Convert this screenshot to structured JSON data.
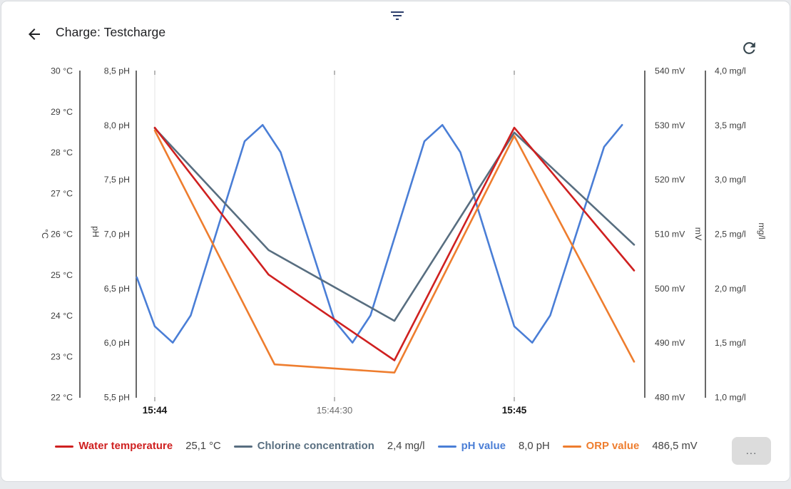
{
  "header": {
    "title": "Charge: Testcharge",
    "back_icon": "arrow-back",
    "filter_icon": "filter-list",
    "refresh_icon": "refresh"
  },
  "footer": {
    "more_label": "..."
  },
  "chart_data": {
    "type": "line",
    "legend_position": "bottom",
    "x_axis": {
      "unit": "time",
      "t_range_seconds": [
        -3.1,
        81.8
      ],
      "ticks": [
        {
          "t": 0,
          "label": "15:44",
          "bold": true
        },
        {
          "t": 30,
          "label": "15:44:30",
          "bold": false
        },
        {
          "t": 60,
          "label": "15:45",
          "bold": true
        }
      ]
    },
    "y_axes": [
      {
        "id": "temp",
        "unit": "°C",
        "range": [
          22,
          30
        ],
        "tick_labels": [
          "30 °C",
          "29 °C",
          "28 °C",
          "27 °C",
          "26 °C",
          "25 °C",
          "24 °C",
          "23 °C",
          "22 °C"
        ]
      },
      {
        "id": "ph",
        "unit": "pH",
        "range": [
          5.5,
          8.5
        ],
        "tick_labels": [
          "8,5 pH",
          "8,0 pH",
          "7,5 pH",
          "7,0 pH",
          "6,5 pH",
          "6,0 pH",
          "5,5 pH"
        ]
      },
      {
        "id": "mv",
        "unit": "mV",
        "range": [
          480,
          540
        ],
        "tick_labels": [
          "540 mV",
          "530 mV",
          "520 mV",
          "510 mV",
          "500 mV",
          "490 mV",
          "480 mV"
        ]
      },
      {
        "id": "mgl",
        "unit": "mg/l",
        "range": [
          1.0,
          4.0
        ],
        "tick_labels": [
          "4,0 mg/l",
          "3,5 mg/l",
          "3,0 mg/l",
          "2,5 mg/l",
          "2,0 mg/l",
          "1,5 mg/l",
          "1,0 mg/l"
        ]
      }
    ],
    "series": [
      {
        "name": "Water temperature",
        "axis": "temp",
        "color": "#cf2020",
        "current_value": "25,1 °C",
        "points": [
          [
            0,
            28.6
          ],
          [
            19,
            25.0
          ],
          [
            40,
            22.9
          ],
          [
            60,
            28.6
          ],
          [
            80,
            25.1
          ]
        ]
      },
      {
        "name": "Chlorine concentration",
        "axis": "mgl",
        "color": "#586e80",
        "current_value": "2,4 mg/l",
        "points": [
          [
            0,
            3.47
          ],
          [
            19,
            2.35
          ],
          [
            40,
            1.7
          ],
          [
            60,
            3.43
          ],
          [
            80,
            2.4
          ]
        ]
      },
      {
        "name": "pH value",
        "axis": "ph",
        "color": "#4a7ed6",
        "current_value": "8,0 pH",
        "points": [
          [
            -3,
            6.6
          ],
          [
            0,
            6.15
          ],
          [
            3,
            6.0
          ],
          [
            6,
            6.25
          ],
          [
            15,
            7.85
          ],
          [
            18,
            8.0
          ],
          [
            21,
            7.75
          ],
          [
            30,
            6.2
          ],
          [
            33,
            6.0
          ],
          [
            36,
            6.25
          ],
          [
            45,
            7.85
          ],
          [
            48,
            8.0
          ],
          [
            51,
            7.75
          ],
          [
            60,
            6.15
          ],
          [
            63,
            6.0
          ],
          [
            66,
            6.25
          ],
          [
            75,
            7.8
          ],
          [
            78,
            8.0
          ]
        ]
      },
      {
        "name": "ORP value",
        "axis": "mv",
        "color": "#ee7d2e",
        "current_value": "486,5 mV",
        "points": [
          [
            0,
            529
          ],
          [
            20,
            486
          ],
          [
            40,
            484.5
          ],
          [
            60,
            528
          ],
          [
            80,
            486.5
          ]
        ]
      }
    ]
  }
}
